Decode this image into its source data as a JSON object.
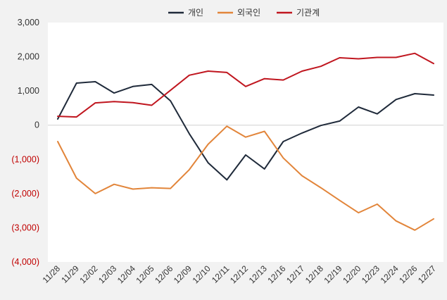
{
  "chart_data": {
    "type": "line",
    "categories": [
      "11/28",
      "11/29",
      "12/02",
      "12/03",
      "12/04",
      "12/05",
      "12/06",
      "12/09",
      "12/10",
      "12/11",
      "12/12",
      "12/13",
      "12/16",
      "12/17",
      "12/18",
      "12/19",
      "12/20",
      "12/23",
      "12/24",
      "12/26",
      "12/27"
    ],
    "series": [
      {
        "name": "개인",
        "color": "#1f2a3a",
        "values": [
          180,
          1230,
          1270,
          940,
          1130,
          1190,
          710,
          -250,
          -1100,
          -1600,
          -870,
          -1280,
          -480,
          -230,
          -10,
          120,
          530,
          330,
          750,
          920,
          880
        ]
      },
      {
        "name": "외국인",
        "color": "#e2853a",
        "values": [
          -480,
          -1550,
          -2000,
          -1730,
          -1870,
          -1830,
          -1850,
          -1300,
          -560,
          -30,
          -350,
          -180,
          -960,
          -1480,
          -1830,
          -2200,
          -2560,
          -2310,
          -2800,
          -3070,
          -2740
        ]
      },
      {
        "name": "기관계",
        "color": "#c0161f",
        "values": [
          260,
          240,
          650,
          690,
          660,
          580,
          1020,
          1460,
          1580,
          1540,
          1130,
          1360,
          1320,
          1580,
          1720,
          1970,
          1940,
          1980,
          1980,
          2100,
          1800
        ]
      }
    ],
    "ylim": [
      -4000,
      3000
    ],
    "yticks": [
      3000,
      2000,
      1000,
      0,
      -1000,
      -2000,
      -3000,
      -4000
    ],
    "ytick_labels": [
      "3,000",
      "2,000",
      "1,000",
      "0",
      "(1,000)",
      "(2,000)",
      "(3,000)",
      "(4,000)"
    ],
    "negative_tick_color": "#c00000",
    "positive_tick_color": "#333333",
    "zero_line": true,
    "grid": false,
    "legend_position": "top-center"
  }
}
